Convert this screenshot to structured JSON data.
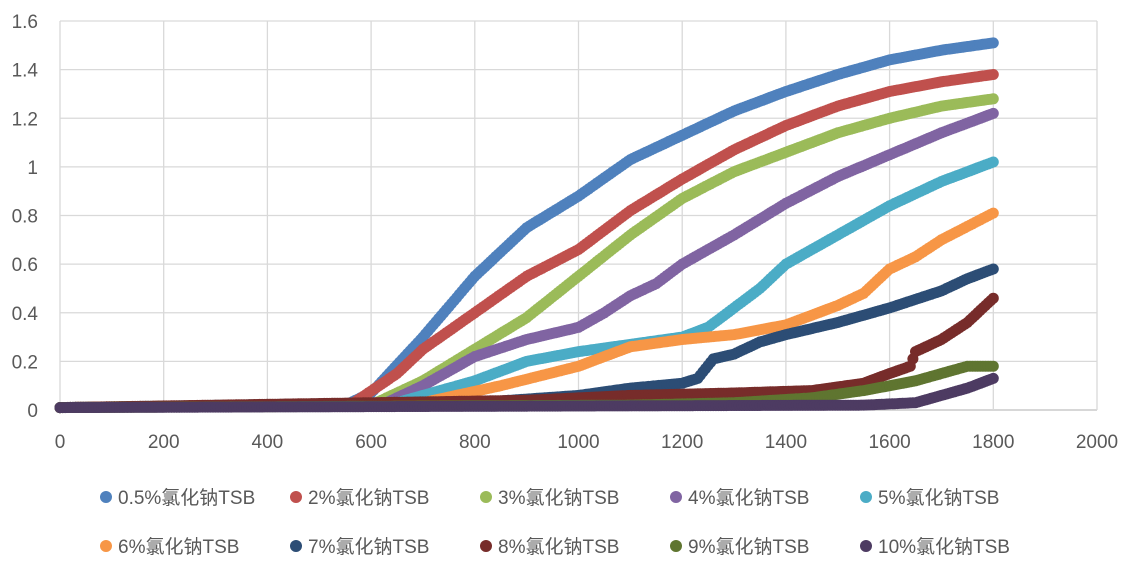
{
  "chart_data": {
    "type": "scatter",
    "title": "",
    "xlabel": "",
    "ylabel": "",
    "xlim": [
      0,
      2000
    ],
    "ylim": [
      0,
      1.6
    ],
    "xticks": [
      0,
      200,
      400,
      600,
      800,
      1000,
      1200,
      1400,
      1600,
      1800,
      2000
    ],
    "yticks": [
      "0",
      "0.2",
      "0.4",
      "0.6",
      "0.8",
      "1",
      "1.2",
      "1.4",
      "1.6"
    ],
    "grid": true,
    "legend_position": "bottom",
    "sampling_step": 5,
    "series": [
      {
        "name": "0.5%氯化钠TSB",
        "color": "#4F81BD",
        "points": [
          [
            0,
            0.01
          ],
          [
            550,
            0.02
          ],
          [
            600,
            0.07
          ],
          [
            700,
            0.3
          ],
          [
            800,
            0.55
          ],
          [
            900,
            0.75
          ],
          [
            1000,
            0.88
          ],
          [
            1100,
            1.03
          ],
          [
            1200,
            1.13
          ],
          [
            1300,
            1.23
          ],
          [
            1400,
            1.31
          ],
          [
            1500,
            1.38
          ],
          [
            1600,
            1.44
          ],
          [
            1700,
            1.48
          ],
          [
            1800,
            1.51
          ]
        ]
      },
      {
        "name": "2%氯化钠TSB",
        "color": "#C0504D",
        "points": [
          [
            0,
            0.01
          ],
          [
            560,
            0.02
          ],
          [
            650,
            0.15
          ],
          [
            700,
            0.25
          ],
          [
            800,
            0.4
          ],
          [
            900,
            0.55
          ],
          [
            1000,
            0.66
          ],
          [
            1100,
            0.82
          ],
          [
            1200,
            0.95
          ],
          [
            1300,
            1.07
          ],
          [
            1400,
            1.17
          ],
          [
            1500,
            1.25
          ],
          [
            1600,
            1.31
          ],
          [
            1700,
            1.35
          ],
          [
            1800,
            1.38
          ]
        ]
      },
      {
        "name": "3%氯化钠TSB",
        "color": "#9BBB59",
        "points": [
          [
            0,
            0.01
          ],
          [
            600,
            0.02
          ],
          [
            700,
            0.12
          ],
          [
            800,
            0.25
          ],
          [
            900,
            0.38
          ],
          [
            1000,
            0.55
          ],
          [
            1100,
            0.72
          ],
          [
            1200,
            0.87
          ],
          [
            1300,
            0.98
          ],
          [
            1400,
            1.06
          ],
          [
            1500,
            1.14
          ],
          [
            1600,
            1.2
          ],
          [
            1700,
            1.25
          ],
          [
            1800,
            1.28
          ]
        ]
      },
      {
        "name": "4%氯化钠TSB",
        "color": "#8064A2",
        "points": [
          [
            0,
            0.01
          ],
          [
            620,
            0.02
          ],
          [
            700,
            0.1
          ],
          [
            800,
            0.22
          ],
          [
            900,
            0.29
          ],
          [
            1000,
            0.34
          ],
          [
            1050,
            0.4
          ],
          [
            1100,
            0.47
          ],
          [
            1150,
            0.52
          ],
          [
            1200,
            0.6
          ],
          [
            1300,
            0.72
          ],
          [
            1400,
            0.85
          ],
          [
            1500,
            0.96
          ],
          [
            1600,
            1.05
          ],
          [
            1700,
            1.14
          ],
          [
            1800,
            1.22
          ]
        ]
      },
      {
        "name": "5%氯化钠TSB",
        "color": "#4BACC6",
        "points": [
          [
            0,
            0.01
          ],
          [
            650,
            0.03
          ],
          [
            800,
            0.12
          ],
          [
            900,
            0.2
          ],
          [
            1000,
            0.24
          ],
          [
            1100,
            0.27
          ],
          [
            1200,
            0.3
          ],
          [
            1250,
            0.34
          ],
          [
            1300,
            0.42
          ],
          [
            1350,
            0.5
          ],
          [
            1400,
            0.6
          ],
          [
            1500,
            0.72
          ],
          [
            1600,
            0.84
          ],
          [
            1700,
            0.94
          ],
          [
            1800,
            1.02
          ]
        ]
      },
      {
        "name": "6%氯化钠TSB",
        "color": "#F79646",
        "points": [
          [
            0,
            0.01
          ],
          [
            700,
            0.03
          ],
          [
            850,
            0.1
          ],
          [
            1000,
            0.18
          ],
          [
            1050,
            0.22
          ],
          [
            1100,
            0.26
          ],
          [
            1200,
            0.29
          ],
          [
            1300,
            0.31
          ],
          [
            1400,
            0.35
          ],
          [
            1500,
            0.43
          ],
          [
            1550,
            0.48
          ],
          [
            1600,
            0.58
          ],
          [
            1650,
            0.63
          ],
          [
            1700,
            0.7
          ],
          [
            1800,
            0.81
          ]
        ]
      },
      {
        "name": "7%氯化钠TSB",
        "color": "#2C4D75",
        "points": [
          [
            0,
            0.01
          ],
          [
            800,
            0.03
          ],
          [
            1000,
            0.06
          ],
          [
            1100,
            0.09
          ],
          [
            1200,
            0.11
          ],
          [
            1230,
            0.13
          ],
          [
            1260,
            0.21
          ],
          [
            1300,
            0.23
          ],
          [
            1350,
            0.28
          ],
          [
            1400,
            0.31
          ],
          [
            1500,
            0.36
          ],
          [
            1600,
            0.42
          ],
          [
            1700,
            0.49
          ],
          [
            1750,
            0.54
          ],
          [
            1800,
            0.58
          ]
        ]
      },
      {
        "name": "8%氯化钠TSB",
        "color": "#772C2A",
        "points": [
          [
            0,
            0.01
          ],
          [
            900,
            0.04
          ],
          [
            1100,
            0.06
          ],
          [
            1300,
            0.07
          ],
          [
            1450,
            0.08
          ],
          [
            1550,
            0.11
          ],
          [
            1600,
            0.15
          ],
          [
            1640,
            0.18
          ],
          [
            1650,
            0.24
          ],
          [
            1700,
            0.29
          ],
          [
            1750,
            0.36
          ],
          [
            1800,
            0.46
          ]
        ]
      },
      {
        "name": "9%氯化钠TSB",
        "color": "#5F7530",
        "points": [
          [
            0,
            0.01
          ],
          [
            1100,
            0.02
          ],
          [
            1300,
            0.03
          ],
          [
            1450,
            0.05
          ],
          [
            1550,
            0.08
          ],
          [
            1650,
            0.12
          ],
          [
            1700,
            0.15
          ],
          [
            1750,
            0.18
          ],
          [
            1800,
            0.18
          ]
        ]
      },
      {
        "name": "10%氯化钠TSB",
        "color": "#4D3B62",
        "points": [
          [
            0,
            0.01
          ],
          [
            1550,
            0.02
          ],
          [
            1650,
            0.03
          ],
          [
            1700,
            0.06
          ],
          [
            1750,
            0.09
          ],
          [
            1800,
            0.13
          ]
        ]
      }
    ]
  }
}
